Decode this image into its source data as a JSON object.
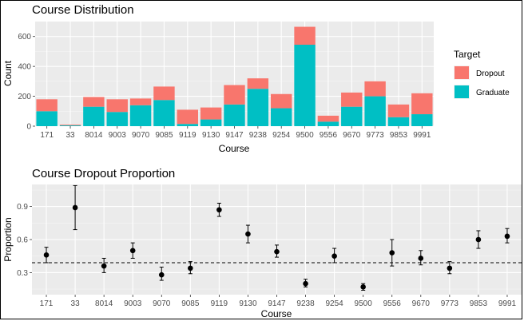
{
  "chart_data": [
    {
      "type": "bar",
      "stacked": true,
      "title": "Course Distribution",
      "xlabel": "Course",
      "ylabel": "Count",
      "ylim": [
        0,
        700
      ],
      "yticks": [
        0,
        200,
        400,
        600
      ],
      "grid": true,
      "legend": {
        "title": "Target",
        "placement": "right"
      },
      "categories": [
        "171",
        "33",
        "8014",
        "9003",
        "9070",
        "9085",
        "9119",
        "9130",
        "9147",
        "9238",
        "9254",
        "9500",
        "9556",
        "9670",
        "9773",
        "9853",
        "9991"
      ],
      "series": [
        {
          "name": "Graduate",
          "color": "#00BFC4",
          "values": [
            100,
            5,
            130,
            95,
            140,
            175,
            15,
            45,
            145,
            250,
            120,
            545,
            30,
            130,
            200,
            60,
            80
          ]
        },
        {
          "name": "Dropout",
          "color": "#F8766D",
          "values": [
            80,
            5,
            65,
            85,
            45,
            90,
            95,
            80,
            130,
            70,
            95,
            120,
            40,
            95,
            100,
            85,
            140
          ]
        }
      ]
    },
    {
      "type": "scatter",
      "title": "Course Dropout Proportion",
      "xlabel": "Course",
      "ylabel": "Proportion",
      "ylim": [
        0.1,
        1.1
      ],
      "yticks": [
        0.3,
        0.6,
        0.9
      ],
      "grid": true,
      "reference_line": 0.39,
      "error_bars": true,
      "categories": [
        "171",
        "33",
        "8014",
        "9003",
        "9070",
        "9085",
        "9119",
        "9130",
        "9147",
        "9238",
        "9254",
        "9500",
        "9556",
        "9670",
        "9773",
        "9853",
        "9991"
      ],
      "values": [
        0.46,
        0.89,
        0.36,
        0.5,
        0.28,
        0.34,
        0.87,
        0.65,
        0.49,
        0.2,
        0.45,
        0.17,
        0.48,
        0.43,
        0.34,
        0.6,
        0.63
      ],
      "lower": [
        0.39,
        0.69,
        0.3,
        0.43,
        0.23,
        0.29,
        0.81,
        0.57,
        0.44,
        0.17,
        0.39,
        0.14,
        0.36,
        0.37,
        0.29,
        0.52,
        0.57
      ],
      "upper": [
        0.53,
        1.09,
        0.43,
        0.57,
        0.35,
        0.4,
        0.93,
        0.73,
        0.55,
        0.24,
        0.52,
        0.2,
        0.6,
        0.5,
        0.4,
        0.68,
        0.7
      ]
    }
  ]
}
